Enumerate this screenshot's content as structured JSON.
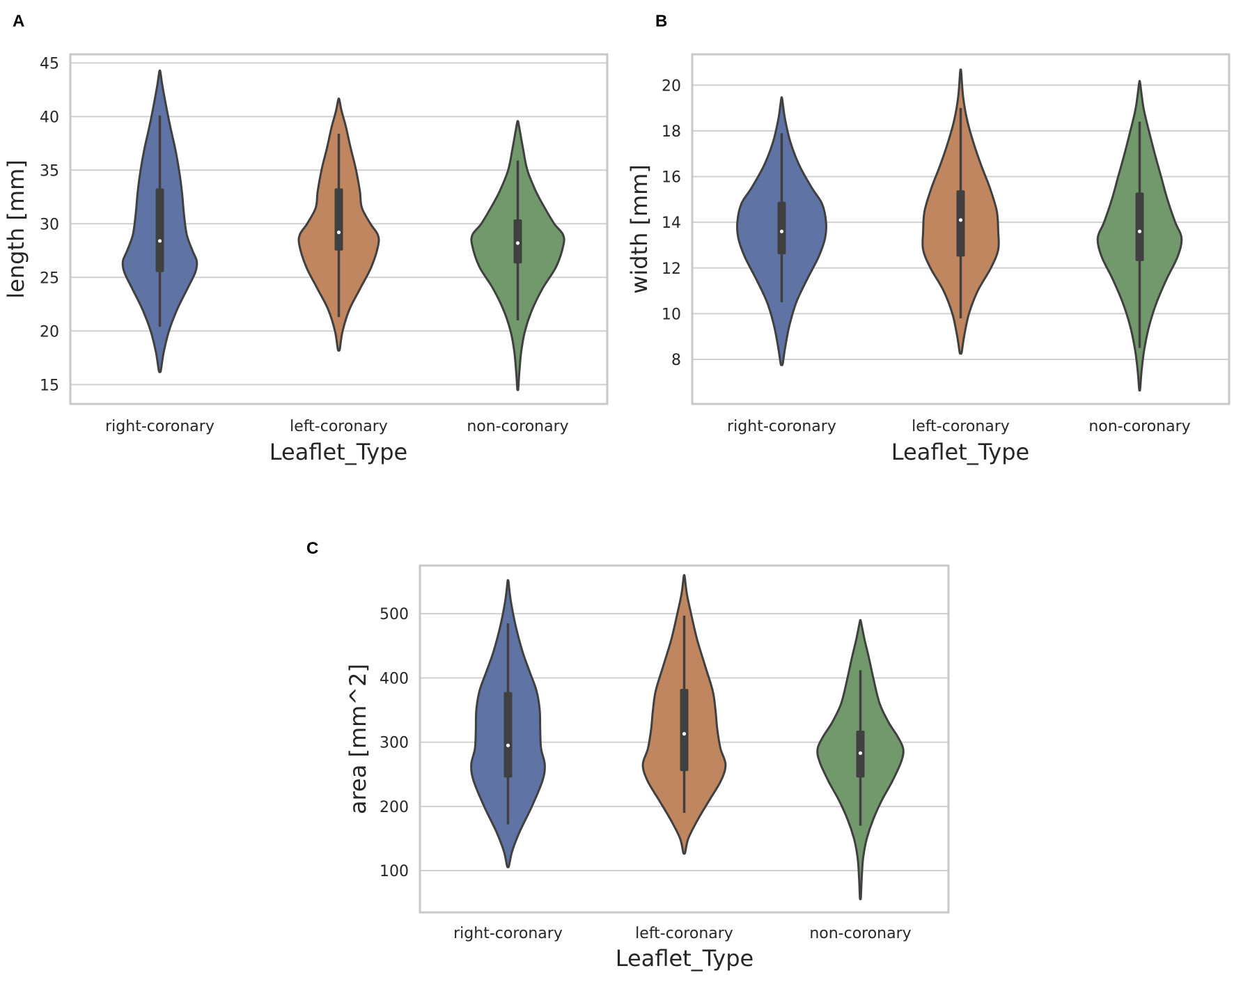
{
  "colors": {
    "right-coronary": "#5f74a4",
    "left-coronary": "#c0865f",
    "non-coronary": "#72996c",
    "inner": "#404040",
    "grid": "#d0d0d0"
  },
  "chart_data": [
    {
      "panel": "A",
      "type": "violin",
      "categories": [
        "right-coronary",
        "left-coronary",
        "non-coronary"
      ],
      "xlabel": "Leaflet_Type",
      "ylabel": "length [mm]",
      "ylim": [
        13.2,
        45.8
      ],
      "yticks": [
        15,
        20,
        25,
        30,
        35,
        40,
        45
      ],
      "grid": true,
      "series": [
        {
          "name": "right-coronary",
          "color": "#5f74a4",
          "median": 28.4,
          "q1": 25.5,
          "q3": 33.3,
          "whisker_low": 20.4,
          "whisker_high": 40.1,
          "profile": [
            [
              16.3,
              0.02
            ],
            [
              18,
              0.08
            ],
            [
              20,
              0.19
            ],
            [
              22,
              0.36
            ],
            [
              24,
              0.58
            ],
            [
              25.5,
              0.74
            ],
            [
              26.5,
              0.77
            ],
            [
              27.5,
              0.68
            ],
            [
              29,
              0.56
            ],
            [
              31,
              0.5
            ],
            [
              33,
              0.46
            ],
            [
              35,
              0.4
            ],
            [
              37,
              0.32
            ],
            [
              39,
              0.22
            ],
            [
              41,
              0.13
            ],
            [
              43,
              0.05
            ],
            [
              44.2,
              0.01
            ]
          ]
        },
        {
          "name": "left-coronary",
          "color": "#c0865f",
          "median": 29.2,
          "q1": 27.5,
          "q3": 33.3,
          "whisker_low": 21.3,
          "whisker_high": 38.4,
          "profile": [
            [
              18.3,
              0.02
            ],
            [
              20,
              0.08
            ],
            [
              22,
              0.22
            ],
            [
              24,
              0.45
            ],
            [
              26,
              0.68
            ],
            [
              28,
              0.82
            ],
            [
              29,
              0.81
            ],
            [
              30,
              0.66
            ],
            [
              31.5,
              0.48
            ],
            [
              33,
              0.44
            ],
            [
              35,
              0.36
            ],
            [
              37,
              0.25
            ],
            [
              39,
              0.15
            ],
            [
              40.5,
              0.06
            ],
            [
              41.6,
              0.01
            ]
          ]
        },
        {
          "name": "non-coronary",
          "color": "#72996c",
          "median": 28.2,
          "q1": 26.3,
          "q3": 30.4,
          "whisker_low": 21.0,
          "whisker_high": 35.9,
          "profile": [
            [
              14.6,
              0.01
            ],
            [
              16,
              0.03
            ],
            [
              18,
              0.07
            ],
            [
              20,
              0.15
            ],
            [
              22,
              0.3
            ],
            [
              24,
              0.52
            ],
            [
              26,
              0.8
            ],
            [
              28,
              0.95
            ],
            [
              29,
              0.94
            ],
            [
              30,
              0.76
            ],
            [
              31.5,
              0.56
            ],
            [
              33,
              0.38
            ],
            [
              35,
              0.2
            ],
            [
              37,
              0.11
            ],
            [
              38.5,
              0.05
            ],
            [
              39.5,
              0.01
            ]
          ]
        }
      ]
    },
    {
      "panel": "B",
      "type": "violin",
      "categories": [
        "right-coronary",
        "left-coronary",
        "non-coronary"
      ],
      "xlabel": "Leaflet_Type",
      "ylabel": "width [mm]",
      "ylim": [
        6.05,
        21.35
      ],
      "yticks": [
        8,
        10,
        12,
        14,
        16,
        18,
        20
      ],
      "grid": true,
      "series": [
        {
          "name": "right-coronary",
          "color": "#5f74a4",
          "median": 13.6,
          "q1": 12.6,
          "q3": 14.9,
          "whisker_low": 10.5,
          "whisker_high": 17.9,
          "profile": [
            [
              7.8,
              0.02
            ],
            [
              8.5,
              0.07
            ],
            [
              9.5,
              0.16
            ],
            [
              10.5,
              0.3
            ],
            [
              11.5,
              0.52
            ],
            [
              12.5,
              0.76
            ],
            [
              13.3,
              0.89
            ],
            [
              14,
              0.91
            ],
            [
              14.8,
              0.83
            ],
            [
              15.5,
              0.62
            ],
            [
              16.5,
              0.36
            ],
            [
              17.5,
              0.18
            ],
            [
              18.5,
              0.07
            ],
            [
              19.4,
              0.01
            ]
          ]
        },
        {
          "name": "left-coronary",
          "color": "#c0865f",
          "median": 14.1,
          "q1": 12.5,
          "q3": 15.4,
          "whisker_low": 9.8,
          "whisker_high": 19.0,
          "profile": [
            [
              8.3,
              0.02
            ],
            [
              9,
              0.07
            ],
            [
              10,
              0.17
            ],
            [
              11,
              0.35
            ],
            [
              12,
              0.62
            ],
            [
              12.8,
              0.77
            ],
            [
              13.6,
              0.77
            ],
            [
              14.5,
              0.74
            ],
            [
              15.5,
              0.6
            ],
            [
              16.5,
              0.42
            ],
            [
              17.5,
              0.26
            ],
            [
              18.5,
              0.13
            ],
            [
              19.5,
              0.05
            ],
            [
              20.6,
              0.01
            ]
          ]
        },
        {
          "name": "non-coronary",
          "color": "#72996c",
          "median": 13.6,
          "q1": 12.3,
          "q3": 15.3,
          "whisker_low": 8.5,
          "whisker_high": 18.4,
          "profile": [
            [
              6.7,
              0.01
            ],
            [
              7.5,
              0.04
            ],
            [
              8.5,
              0.1
            ],
            [
              9.5,
              0.2
            ],
            [
              10.5,
              0.35
            ],
            [
              11.5,
              0.55
            ],
            [
              12.5,
              0.78
            ],
            [
              13.3,
              0.86
            ],
            [
              14,
              0.73
            ],
            [
              15,
              0.57
            ],
            [
              16,
              0.44
            ],
            [
              17,
              0.31
            ],
            [
              18,
              0.19
            ],
            [
              19,
              0.08
            ],
            [
              20.1,
              0.01
            ]
          ]
        }
      ]
    },
    {
      "panel": "C",
      "type": "violin",
      "categories": [
        "right-coronary",
        "left-coronary",
        "non-coronary"
      ],
      "xlabel": "Leaflet_Type",
      "ylabel": "area [mm^2]",
      "ylim": [
        35,
        575
      ],
      "yticks": [
        100,
        200,
        300,
        400,
        500
      ],
      "grid": true,
      "series": [
        {
          "name": "right-coronary",
          "color": "#5f74a4",
          "median": 295,
          "q1": 245,
          "q3": 378,
          "whisker_low": 172,
          "whisker_high": 485,
          "profile": [
            [
              107,
              0.02
            ],
            [
              130,
              0.09
            ],
            [
              160,
              0.25
            ],
            [
              200,
              0.52
            ],
            [
              240,
              0.75
            ],
            [
              265,
              0.8
            ],
            [
              290,
              0.72
            ],
            [
              320,
              0.7
            ],
            [
              350,
              0.69
            ],
            [
              380,
              0.62
            ],
            [
              410,
              0.47
            ],
            [
              440,
              0.32
            ],
            [
              480,
              0.17
            ],
            [
              520,
              0.06
            ],
            [
              550,
              0.01
            ]
          ]
        },
        {
          "name": "left-coronary",
          "color": "#c0865f",
          "median": 313,
          "q1": 255,
          "q3": 383,
          "whisker_low": 190,
          "whisker_high": 497,
          "profile": [
            [
              128,
              0.02
            ],
            [
              150,
              0.09
            ],
            [
              180,
              0.3
            ],
            [
              210,
              0.55
            ],
            [
              240,
              0.8
            ],
            [
              265,
              0.9
            ],
            [
              290,
              0.79
            ],
            [
              320,
              0.72
            ],
            [
              350,
              0.68
            ],
            [
              380,
              0.62
            ],
            [
              420,
              0.45
            ],
            [
              460,
              0.28
            ],
            [
              500,
              0.15
            ],
            [
              530,
              0.06
            ],
            [
              558,
              0.01
            ]
          ]
        },
        {
          "name": "non-coronary",
          "color": "#72996c",
          "median": 283,
          "q1": 245,
          "q3": 318,
          "whisker_low": 170,
          "whisker_high": 412,
          "profile": [
            [
              58,
              0.01
            ],
            [
              90,
              0.03
            ],
            [
              120,
              0.06
            ],
            [
              150,
              0.14
            ],
            [
              180,
              0.28
            ],
            [
              210,
              0.47
            ],
            [
              240,
              0.7
            ],
            [
              270,
              0.89
            ],
            [
              290,
              0.93
            ],
            [
              310,
              0.8
            ],
            [
              330,
              0.62
            ],
            [
              360,
              0.42
            ],
            [
              400,
              0.28
            ],
            [
              430,
              0.19
            ],
            [
              460,
              0.09
            ],
            [
              488,
              0.01
            ]
          ]
        }
      ]
    }
  ]
}
